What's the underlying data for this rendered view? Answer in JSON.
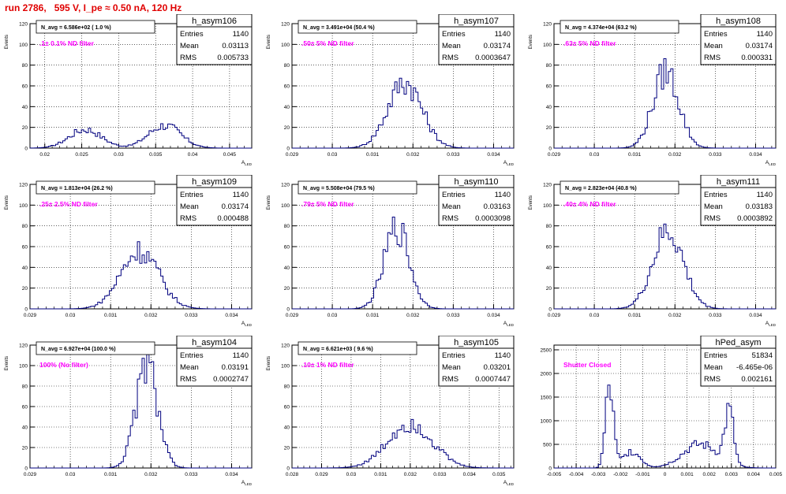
{
  "page": {
    "title": "run 2786,   595 V, I_pe ≈ 0.50 nA, 120 Hz"
  },
  "colors": {
    "title": "#e00000",
    "histogram": "#00007f",
    "annotation": "#ff00ff",
    "grid": "#000000"
  },
  "chart_data": [
    {
      "type": "histogram",
      "name": "h_asym106",
      "stats": {
        "entries": "1140",
        "mean": "0.03113",
        "rms": "0.005733"
      },
      "navg": "N_avg = 6.586e+02 ( 1.0 %)",
      "annotation": ".1± 0.1% ND filter",
      "xlabel": "A_LED",
      "ylabel": "Events",
      "xlim": [
        0.018,
        0.048
      ],
      "ylim": [
        0,
        120
      ],
      "xticks": [
        0.02,
        0.025,
        0.03,
        0.035,
        0.04,
        0.045
      ],
      "xticklabels": [
        "0.02",
        "0.025",
        "0.03",
        "0.035",
        "0.04",
        "0.045"
      ],
      "yticks": [
        0,
        20,
        40,
        60,
        80,
        100,
        120
      ],
      "peaks": [
        [
          0.0255,
          18,
          0.0022
        ],
        [
          0.0362,
          22,
          0.0022
        ]
      ]
    },
    {
      "type": "histogram",
      "name": "h_asym107",
      "stats": {
        "entries": "1140",
        "mean": "0.03174",
        "rms": "0.0003647"
      },
      "navg": "N_avg = 3.491e+04 (50.4 %)",
      "annotation": ".50± 5% ND filter",
      "xlabel": "A_LED",
      "ylabel": "Events",
      "xlim": [
        0.029,
        0.0345
      ],
      "ylim": [
        0,
        120
      ],
      "xticks": [
        0.029,
        0.03,
        0.031,
        0.032,
        0.033,
        0.034
      ],
      "xticklabels": [
        "0.029",
        "0.03",
        "0.031",
        "0.032",
        "0.033",
        "0.034"
      ],
      "yticks": [
        0,
        20,
        40,
        60,
        80,
        100,
        120
      ],
      "peaks": [
        [
          0.0318,
          64,
          0.00042
        ]
      ]
    },
    {
      "type": "histogram",
      "name": "h_asym108",
      "stats": {
        "entries": "1140",
        "mean": "0.03174",
        "rms": "0.000331"
      },
      "navg": "N_avg = 4.374e+04 (63.2 %)",
      "annotation": ".63± 5% ND filter",
      "xlabel": "A_LED",
      "ylabel": "Events",
      "xlim": [
        0.029,
        0.0345
      ],
      "ylim": [
        0,
        120
      ],
      "xticks": [
        0.029,
        0.03,
        0.031,
        0.032,
        0.033,
        0.034
      ],
      "xticklabels": [
        "0.029",
        "0.03",
        "0.031",
        "0.032",
        "0.033",
        "0.034"
      ],
      "yticks": [
        0,
        20,
        40,
        60,
        80,
        100,
        120
      ],
      "peaks": [
        [
          0.03178,
          74,
          0.00032
        ]
      ]
    },
    {
      "type": "histogram",
      "name": "h_asym109",
      "stats": {
        "entries": "1140",
        "mean": "0.03174",
        "rms": "0.000488"
      },
      "navg": "N_avg = 1.813e+04 (26.2 %)",
      "annotation": ".25± 2.5% ND filter",
      "xlabel": "A_LED",
      "ylabel": "Events",
      "xlim": [
        0.029,
        0.0345
      ],
      "ylim": [
        0,
        120
      ],
      "xticks": [
        0.029,
        0.03,
        0.031,
        0.032,
        0.033,
        0.034
      ],
      "xticklabels": [
        "0.029",
        "0.03",
        "0.031",
        "0.032",
        "0.033",
        "0.034"
      ],
      "yticks": [
        0,
        20,
        40,
        60,
        80,
        100,
        120
      ],
      "peaks": [
        [
          0.03172,
          56,
          0.00047
        ]
      ]
    },
    {
      "type": "histogram",
      "name": "h_asym110",
      "stats": {
        "entries": "1140",
        "mean": "0.03163",
        "rms": "0.0003098"
      },
      "navg": "N_avg = 5.508e+04 (79.5 %)",
      "annotation": ".79± 5% ND filter",
      "xlabel": "A_LED",
      "ylabel": "Events",
      "xlim": [
        0.029,
        0.0345
      ],
      "ylim": [
        0,
        120
      ],
      "xticks": [
        0.029,
        0.03,
        0.031,
        0.032,
        0.033,
        0.034
      ],
      "xticklabels": [
        "0.029",
        "0.03",
        "0.031",
        "0.032",
        "0.033",
        "0.034"
      ],
      "yticks": [
        0,
        20,
        40,
        60,
        80,
        100,
        120
      ],
      "peaks": [
        [
          0.0316,
          78,
          0.00031
        ]
      ]
    },
    {
      "type": "histogram",
      "name": "h_asym111",
      "stats": {
        "entries": "1140",
        "mean": "0.03183",
        "rms": "0.0003892"
      },
      "navg": "N_avg = 2.823e+04 (40.8 %)",
      "annotation": ".40± 4% ND filter",
      "xlabel": "A_LED",
      "ylabel": "Events",
      "xlim": [
        0.029,
        0.0345
      ],
      "ylim": [
        0,
        120
      ],
      "xticks": [
        0.029,
        0.03,
        0.031,
        0.032,
        0.033,
        0.034
      ],
      "xticklabels": [
        "0.029",
        "0.03",
        "0.031",
        "0.032",
        "0.033",
        "0.034"
      ],
      "yticks": [
        0,
        20,
        40,
        60,
        80,
        100,
        120
      ],
      "peaks": [
        [
          0.03183,
          74,
          0.00038
        ]
      ]
    },
    {
      "type": "histogram",
      "name": "h_asym104",
      "stats": {
        "entries": "1140",
        "mean": "0.03191",
        "rms": "0.0002747"
      },
      "navg": "N_avg = 6.927e+04 (100.0 %)",
      "annotation": "100% (No filter)",
      "xlabel": "A_LED",
      "ylabel": "Events",
      "xlim": [
        0.029,
        0.0345
      ],
      "ylim": [
        0,
        120
      ],
      "xticks": [
        0.029,
        0.03,
        0.031,
        0.032,
        0.033,
        0.034
      ],
      "xticklabels": [
        "0.029",
        "0.03",
        "0.031",
        "0.032",
        "0.033",
        "0.034"
      ],
      "yticks": [
        0,
        20,
        40,
        60,
        80,
        100,
        120
      ],
      "peaks": [
        [
          0.0319,
          100,
          0.00027
        ]
      ]
    },
    {
      "type": "histogram",
      "name": "h_asym105",
      "stats": {
        "entries": "1140",
        "mean": "0.03201",
        "rms": "0.0007447"
      },
      "navg": "N_avg = 6.621e+03 ( 9.6 %)",
      "annotation": ".10± 1% ND filter",
      "xlabel": "A_LED",
      "ylabel": "Events",
      "xlim": [
        0.028,
        0.0355
      ],
      "ylim": [
        0,
        120
      ],
      "xticks": [
        0.028,
        0.029,
        0.03,
        0.031,
        0.032,
        0.033,
        0.034,
        0.035
      ],
      "xticklabels": [
        "0.028",
        "0.029",
        "0.03",
        "0.031",
        "0.032",
        "0.033",
        "0.034",
        "0.035"
      ],
      "yticks": [
        0,
        20,
        40,
        60,
        80,
        100,
        120
      ],
      "peaks": [
        [
          0.032,
          44,
          0.00075
        ]
      ]
    },
    {
      "type": "histogram",
      "name": "hPed_asym",
      "stats": {
        "entries": "51834",
        "mean": "-6.465e-06",
        "rms": "0.002161"
      },
      "navg": "",
      "annotation": "Shutter Closed",
      "xlabel": "",
      "ylabel": "",
      "xlim": [
        -0.005,
        0.005
      ],
      "ylim": [
        0,
        2600
      ],
      "xticks": [
        -0.005,
        -0.004,
        -0.003,
        -0.002,
        -0.001,
        0,
        0.001,
        0.002,
        0.003,
        0.004,
        0.005
      ],
      "xticklabels": [
        "-0.005",
        "-0.004",
        "-0.003",
        "-0.002",
        "-0.001",
        "0",
        "0.001",
        "0.002",
        "0.003",
        "0.004",
        "0.005"
      ],
      "yticks": [
        0,
        500,
        1000,
        1500,
        2000,
        2500
      ],
      "peaks": [
        [
          -0.0025,
          1700,
          0.00018
        ],
        [
          -0.0015,
          350,
          0.0004
        ],
        [
          0.0029,
          1100,
          0.0002
        ],
        [
          0.0016,
          500,
          0.0008
        ]
      ]
    }
  ]
}
